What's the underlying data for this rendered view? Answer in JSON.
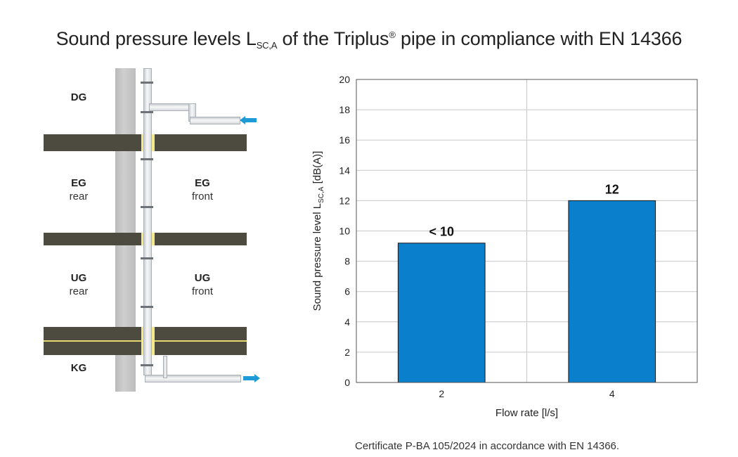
{
  "title": {
    "prefix": "Sound pressure levels L",
    "subscript": "SC,A",
    "middle": " of the Triplus",
    "superscript": "®",
    "suffix": " pipe in compliance with EN 14366"
  },
  "diagram": {
    "floors": [
      {
        "id": "dg",
        "main": "DG",
        "sub": ""
      },
      {
        "id": "eg-rear",
        "main": "EG",
        "sub": "rear"
      },
      {
        "id": "eg-front",
        "main": "EG",
        "sub": "front"
      },
      {
        "id": "ug-rear",
        "main": "UG",
        "sub": "rear"
      },
      {
        "id": "ug-front",
        "main": "UG",
        "sub": "front"
      },
      {
        "id": "kg",
        "main": "KG",
        "sub": ""
      }
    ],
    "colors": {
      "arrow": "#1e9ad6",
      "slab": "#4d4a40",
      "seal": "#f4ea8c"
    }
  },
  "chart_data": {
    "type": "bar",
    "categories": [
      "2",
      "4"
    ],
    "values": [
      9.2,
      12
    ],
    "data_labels": [
      "< 10",
      "12"
    ],
    "xlabel": "Flow rate [l/s]",
    "ylabel_prefix": "Sound pressure level L",
    "ylabel_subscript": "SC,A",
    "ylabel_suffix": " [dB(A)]",
    "ylim": [
      0,
      20
    ],
    "yticks": [
      0,
      2,
      4,
      6,
      8,
      10,
      12,
      14,
      16,
      18,
      20
    ],
    "grid": true,
    "bar_color": "#0a7fcc"
  },
  "footnote": "Certificate P-BA 105/2024 in accordance with EN 14366."
}
